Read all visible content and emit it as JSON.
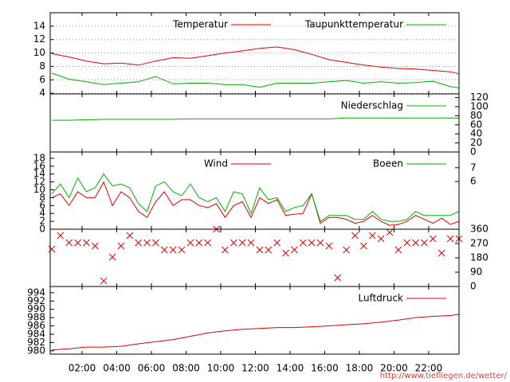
{
  "chart_data": [
    {
      "type": "line",
      "xlim": [
        0.16,
        23.75
      ],
      "ylim": [
        3.9,
        16
      ],
      "yticks": [
        4,
        6,
        8,
        10,
        12,
        14
      ],
      "ytick_side": "left",
      "grid": true,
      "x": [
        0.25,
        1.25,
        2.25,
        3.25,
        4.25,
        5.25,
        6.25,
        7.25,
        8.25,
        9.25,
        10.25,
        11.25,
        12.25,
        13.25,
        14.25,
        15.25,
        16.25,
        17.25,
        18.25,
        19.25,
        20.25,
        21.25,
        22.25,
        23.25,
        23.75
      ],
      "series": [
        {
          "name": "Temperatur",
          "color": "#e00000",
          "values": [
            9.9,
            9.4,
            8.8,
            8.4,
            8.5,
            8.2,
            8.8,
            9.3,
            9.2,
            9.6,
            10.0,
            10.3,
            10.7,
            10.9,
            10.5,
            9.8,
            9.0,
            8.6,
            8.2,
            7.9,
            7.7,
            7.6,
            7.4,
            7.2,
            6.9
          ]
        },
        {
          "name": "Taupunkttemperatur",
          "color": "#00b000",
          "values": [
            7.0,
            6.1,
            5.7,
            5.3,
            5.5,
            5.7,
            6.5,
            5.4,
            5.5,
            5.5,
            5.3,
            5.3,
            4.9,
            5.5,
            5.5,
            5.5,
            5.7,
            5.9,
            5.5,
            5.7,
            5.5,
            5.6,
            5.8,
            5.0,
            4.8
          ]
        }
      ]
    },
    {
      "type": "line",
      "xlim": [
        0.16,
        23.75
      ],
      "ylim": [
        0,
        128
      ],
      "yticks": [
        0,
        20,
        40,
        60,
        80,
        100,
        120
      ],
      "ytick_side": "right",
      "grid": false,
      "x": [
        0.25,
        1.25,
        2.25,
        3.25,
        4.25,
        5.25,
        6.25,
        7.25,
        8.25,
        9.25,
        10.25,
        11.25,
        12.25,
        13.25,
        14.25,
        15.25,
        16.25,
        17.25,
        18.25,
        19.25,
        20.25,
        21.25,
        22.25,
        23.25,
        23.75
      ],
      "series": [
        {
          "name": "Niederschlag",
          "color": "#00b000",
          "values": [
            70,
            70,
            71,
            72,
            72,
            72,
            72,
            72,
            73,
            73,
            73,
            73,
            73,
            73,
            73,
            73,
            73,
            75,
            75,
            75,
            75,
            75,
            75,
            75,
            75
          ]
        }
      ]
    },
    {
      "type": "line",
      "xlim": [
        0.16,
        23.75
      ],
      "ylim": [
        0,
        19.6
      ],
      "yticks": [
        0,
        2,
        4,
        6,
        8,
        10,
        12,
        14,
        16,
        18
      ],
      "ytick_side": "left",
      "grid": false,
      "beaufort_ticks": [
        {
          "bft": 7,
          "wind": 15.6
        },
        {
          "bft": 6,
          "wind": 12.1
        }
      ],
      "x": [
        0.25,
        0.75,
        1.25,
        1.75,
        2.25,
        2.75,
        3.25,
        3.75,
        4.25,
        4.75,
        5.25,
        5.75,
        6.25,
        6.75,
        7.25,
        7.75,
        8.25,
        8.75,
        9.25,
        9.75,
        10.25,
        10.75,
        11.25,
        11.75,
        12.25,
        12.75,
        13.25,
        13.75,
        14.25,
        14.75,
        15.25,
        15.75,
        16.25,
        16.75,
        17.25,
        17.75,
        18.25,
        18.75,
        19.25,
        19.75,
        20.25,
        20.75,
        21.25,
        21.75,
        22.25,
        22.75,
        23.25,
        23.75
      ],
      "series": [
        {
          "name": "Wind",
          "color": "#e00000",
          "values": [
            8,
            9,
            6,
            9.5,
            8,
            8,
            12,
            6,
            9.5,
            8,
            4.5,
            3,
            7,
            9.5,
            6,
            7.5,
            7.5,
            6,
            5.5,
            6.5,
            3,
            6,
            7,
            3,
            8,
            6.5,
            7.5,
            3.5,
            3.8,
            4,
            9,
            1.5,
            3,
            3,
            2.5,
            1.5,
            2,
            3.5,
            2,
            1,
            1.2,
            2,
            3.5,
            2.5,
            1.5,
            2.8,
            1.2,
            2
          ]
        },
        {
          "name": "Boeen",
          "color": "#00b000",
          "values": [
            9,
            11.5,
            8,
            13,
            9.5,
            10.5,
            14,
            11,
            11.5,
            10.5,
            6.5,
            4.5,
            11,
            12,
            9.5,
            8.5,
            11.5,
            8,
            7,
            8,
            4.5,
            9.5,
            9,
            4,
            10.5,
            7.5,
            8,
            4.5,
            5.5,
            6,
            9,
            2,
            3.5,
            3.5,
            3.5,
            2.5,
            2.5,
            4.5,
            2.5,
            2,
            2,
            2.5,
            4.5,
            3.5,
            3.5,
            3.5,
            3.5,
            4.5
          ]
        }
      ]
    },
    {
      "type": "scatter",
      "xlim": [
        0.16,
        23.75
      ],
      "ylim": [
        0,
        360
      ],
      "yticks": [
        0,
        90,
        180,
        270,
        360
      ],
      "ytick_side": "right",
      "grid": false,
      "color": "#e00000",
      "x": [
        0.25,
        0.75,
        1.25,
        1.75,
        2.25,
        2.75,
        3.25,
        3.75,
        4.25,
        4.75,
        5.25,
        5.75,
        6.25,
        6.75,
        7.25,
        7.75,
        8.25,
        8.75,
        9.25,
        9.75,
        10.25,
        10.75,
        11.25,
        11.75,
        12.25,
        12.75,
        13.25,
        13.75,
        14.25,
        14.75,
        15.25,
        15.75,
        16.25,
        16.75,
        17.25,
        17.75,
        18.25,
        18.75,
        19.25,
        19.75,
        20.25,
        20.75,
        21.25,
        21.75,
        22.25,
        22.75,
        23.25,
        23.75
      ],
      "values": [
        235,
        320,
        275,
        275,
        275,
        255,
        35,
        185,
        255,
        320,
        275,
        275,
        275,
        230,
        230,
        230,
        275,
        275,
        275,
        360,
        230,
        275,
        275,
        275,
        230,
        230,
        275,
        210,
        230,
        275,
        275,
        275,
        255,
        55,
        230,
        320,
        255,
        320,
        300,
        340,
        230,
        275,
        275,
        275,
        300,
        210,
        300,
        300
      ]
    },
    {
      "type": "line",
      "xlim": [
        0.16,
        23.75
      ],
      "ylim": [
        979.2,
        995.5
      ],
      "yticks": [
        980,
        982,
        984,
        986,
        988,
        990,
        992,
        994
      ],
      "ytick_side": "left",
      "grid": false,
      "xticks": [
        {
          "value": 2,
          "label": "02:00"
        },
        {
          "value": 4,
          "label": "04:00"
        },
        {
          "value": 6,
          "label": "06:00"
        },
        {
          "value": 8,
          "label": "08:00"
        },
        {
          "value": 10,
          "label": "10:00"
        },
        {
          "value": 12,
          "label": "12:00"
        },
        {
          "value": 14,
          "label": "14:00"
        },
        {
          "value": 16,
          "label": "16:00"
        },
        {
          "value": 18,
          "label": "18:00"
        },
        {
          "value": 20,
          "label": "20:00"
        },
        {
          "value": 22,
          "label": "22:00"
        }
      ],
      "x": [
        0.25,
        1.25,
        2.25,
        3.25,
        4.25,
        5.25,
        6.25,
        7.25,
        8.25,
        9.25,
        10.25,
        11.25,
        12.25,
        13.25,
        14.25,
        15.25,
        16.25,
        17.25,
        18.25,
        19.25,
        20.25,
        21.25,
        22.25,
        23.25,
        23.75
      ],
      "series": [
        {
          "name": "Luftdruck",
          "color": "#e00000",
          "values": [
            980.2,
            980.5,
            980.9,
            980.9,
            981.1,
            981.7,
            982.2,
            982.7,
            983.5,
            984.3,
            984.8,
            985.2,
            985.4,
            985.6,
            985.6,
            985.8,
            986.0,
            986.3,
            986.5,
            986.9,
            987.4,
            988.0,
            988.3,
            988.5,
            988.8
          ]
        }
      ]
    }
  ],
  "footer": "http://www.tiefliegen.de/wetter/"
}
